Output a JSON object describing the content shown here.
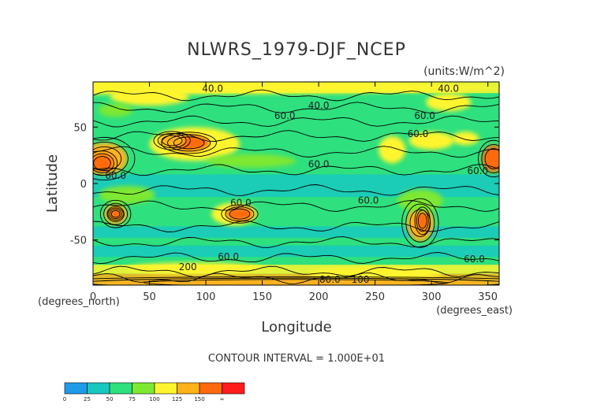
{
  "chart_data": {
    "type": "heatmap",
    "title": "NLWRS_1979-DJF_NCEP",
    "units": "(units:W/m^2)",
    "xlabel": "Longitude",
    "ylabel": "Latitude",
    "x_unit_label": "(degrees_east)",
    "y_unit_label": "(degrees_north)",
    "footer": "CONTOUR INTERVAL = 1.000E+01",
    "xlim": [
      0,
      360
    ],
    "ylim": [
      -90,
      90
    ],
    "x_ticks": [
      0,
      50,
      100,
      150,
      200,
      250,
      300,
      350
    ],
    "y_ticks": [
      50,
      0,
      -50
    ],
    "contour_labels": [
      {
        "text": "40.0",
        "x": 106,
        "y": 84
      },
      {
        "text": "40.0",
        "x": 315,
        "y": 84
      },
      {
        "text": "40.0",
        "x": 200,
        "y": 69
      },
      {
        "text": "60.0",
        "x": 170,
        "y": 60
      },
      {
        "text": "60.0",
        "x": 294,
        "y": 60
      },
      {
        "text": "60.0",
        "x": 288,
        "y": 44
      },
      {
        "text": "60.0",
        "x": 200,
        "y": 17
      },
      {
        "text": "60.0",
        "x": 341,
        "y": 11
      },
      {
        "text": "60.0",
        "x": 20,
        "y": 7
      },
      {
        "text": "60.0",
        "x": 244,
        "y": -15
      },
      {
        "text": "60.0",
        "x": 131,
        "y": -17
      },
      {
        "text": "60.0",
        "x": 120,
        "y": -65
      },
      {
        "text": "60.0",
        "x": 338,
        "y": -67
      },
      {
        "text": "80.0",
        "x": 210,
        "y": -85
      },
      {
        "text": "100",
        "x": 237,
        "y": -85
      },
      {
        "text": "200",
        "x": 84,
        "y": -74
      }
    ],
    "colorbar": {
      "levels": [
        "0",
        "25",
        "50",
        "75",
        "100",
        "125",
        "150",
        "∞"
      ],
      "colors": [
        "#1f9ce8",
        "#17c8c0",
        "#2ee07e",
        "#7ee832",
        "#fff52e",
        "#ffb21a",
        "#ff6a0e",
        "#ff1c1c"
      ]
    }
  }
}
